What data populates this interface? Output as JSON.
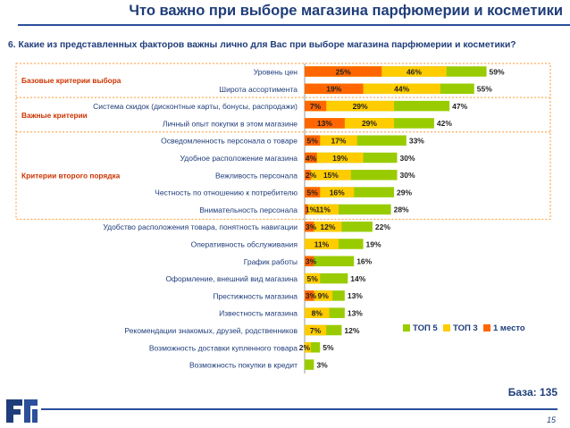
{
  "header": {
    "title": "Что важно при выборе магазина парфюмерии и косметики"
  },
  "question": "6. Какие из представленных факторов важны лично для Вас при выборе магазина парфюмерии и косметики?",
  "footer": {
    "base": "База: 135",
    "page_number": "15"
  },
  "colors": {
    "top5": "#99cc00",
    "top3": "#ffcc00",
    "first": "#ff6600",
    "title": "#1f3d7a",
    "group_border": "#ff9933",
    "group_label": "#cc3300"
  },
  "chart_data": {
    "type": "bar",
    "orientation": "horizontal",
    "stacked": "overlay",
    "xlim": [
      0,
      100
    ],
    "legend_position": "bottom-right",
    "series": [
      {
        "name": "ТОП 5",
        "color": "#99cc00",
        "values": [
          59,
          55,
          47,
          42,
          33,
          30,
          30,
          29,
          28,
          22,
          19,
          16,
          14,
          13,
          13,
          12,
          5,
          3
        ]
      },
      {
        "name": "ТОП 3",
        "color": "#ffcc00",
        "values": [
          46,
          44,
          29,
          29,
          17,
          19,
          15,
          16,
          11,
          12,
          11,
          null,
          5,
          9,
          8,
          7,
          2,
          null
        ]
      },
      {
        "name": "1 место",
        "color": "#ff6600",
        "values": [
          25,
          19,
          7,
          13,
          5,
          4,
          2,
          5,
          1,
          3,
          null,
          3,
          null,
          3,
          null,
          null,
          null,
          null
        ]
      }
    ],
    "categories": [
      "Уровень цен",
      "Широта ассортимента",
      "Система скидок (дисконтные карты, бонусы, распродажи)",
      "Личный опыт покупки в этом магазине",
      "Осведомленность персонала о товаре",
      "Удобное расположение магазина",
      "Вежливость персонала",
      "Честность по отношению к потребителю",
      "Внимательность персонала",
      "Удобство расположения товара, понятность навигации",
      "Оперативность обслуживания",
      "График работы",
      "Оформление, внешний вид магазина",
      "Престижность магазина",
      "Известность магазина",
      "Рекомендации знакомых, друзей, родственников",
      "Возможность доставки купленного товара",
      "Возможность покупки в кредит"
    ],
    "groups": [
      {
        "label": "Базовые критерии выбора",
        "rows": [
          0,
          1
        ]
      },
      {
        "label": "Важные критерии",
        "rows": [
          2,
          3
        ]
      },
      {
        "label": "Критерии второго порядка",
        "rows": [
          4,
          5,
          6,
          7,
          8
        ]
      }
    ]
  }
}
